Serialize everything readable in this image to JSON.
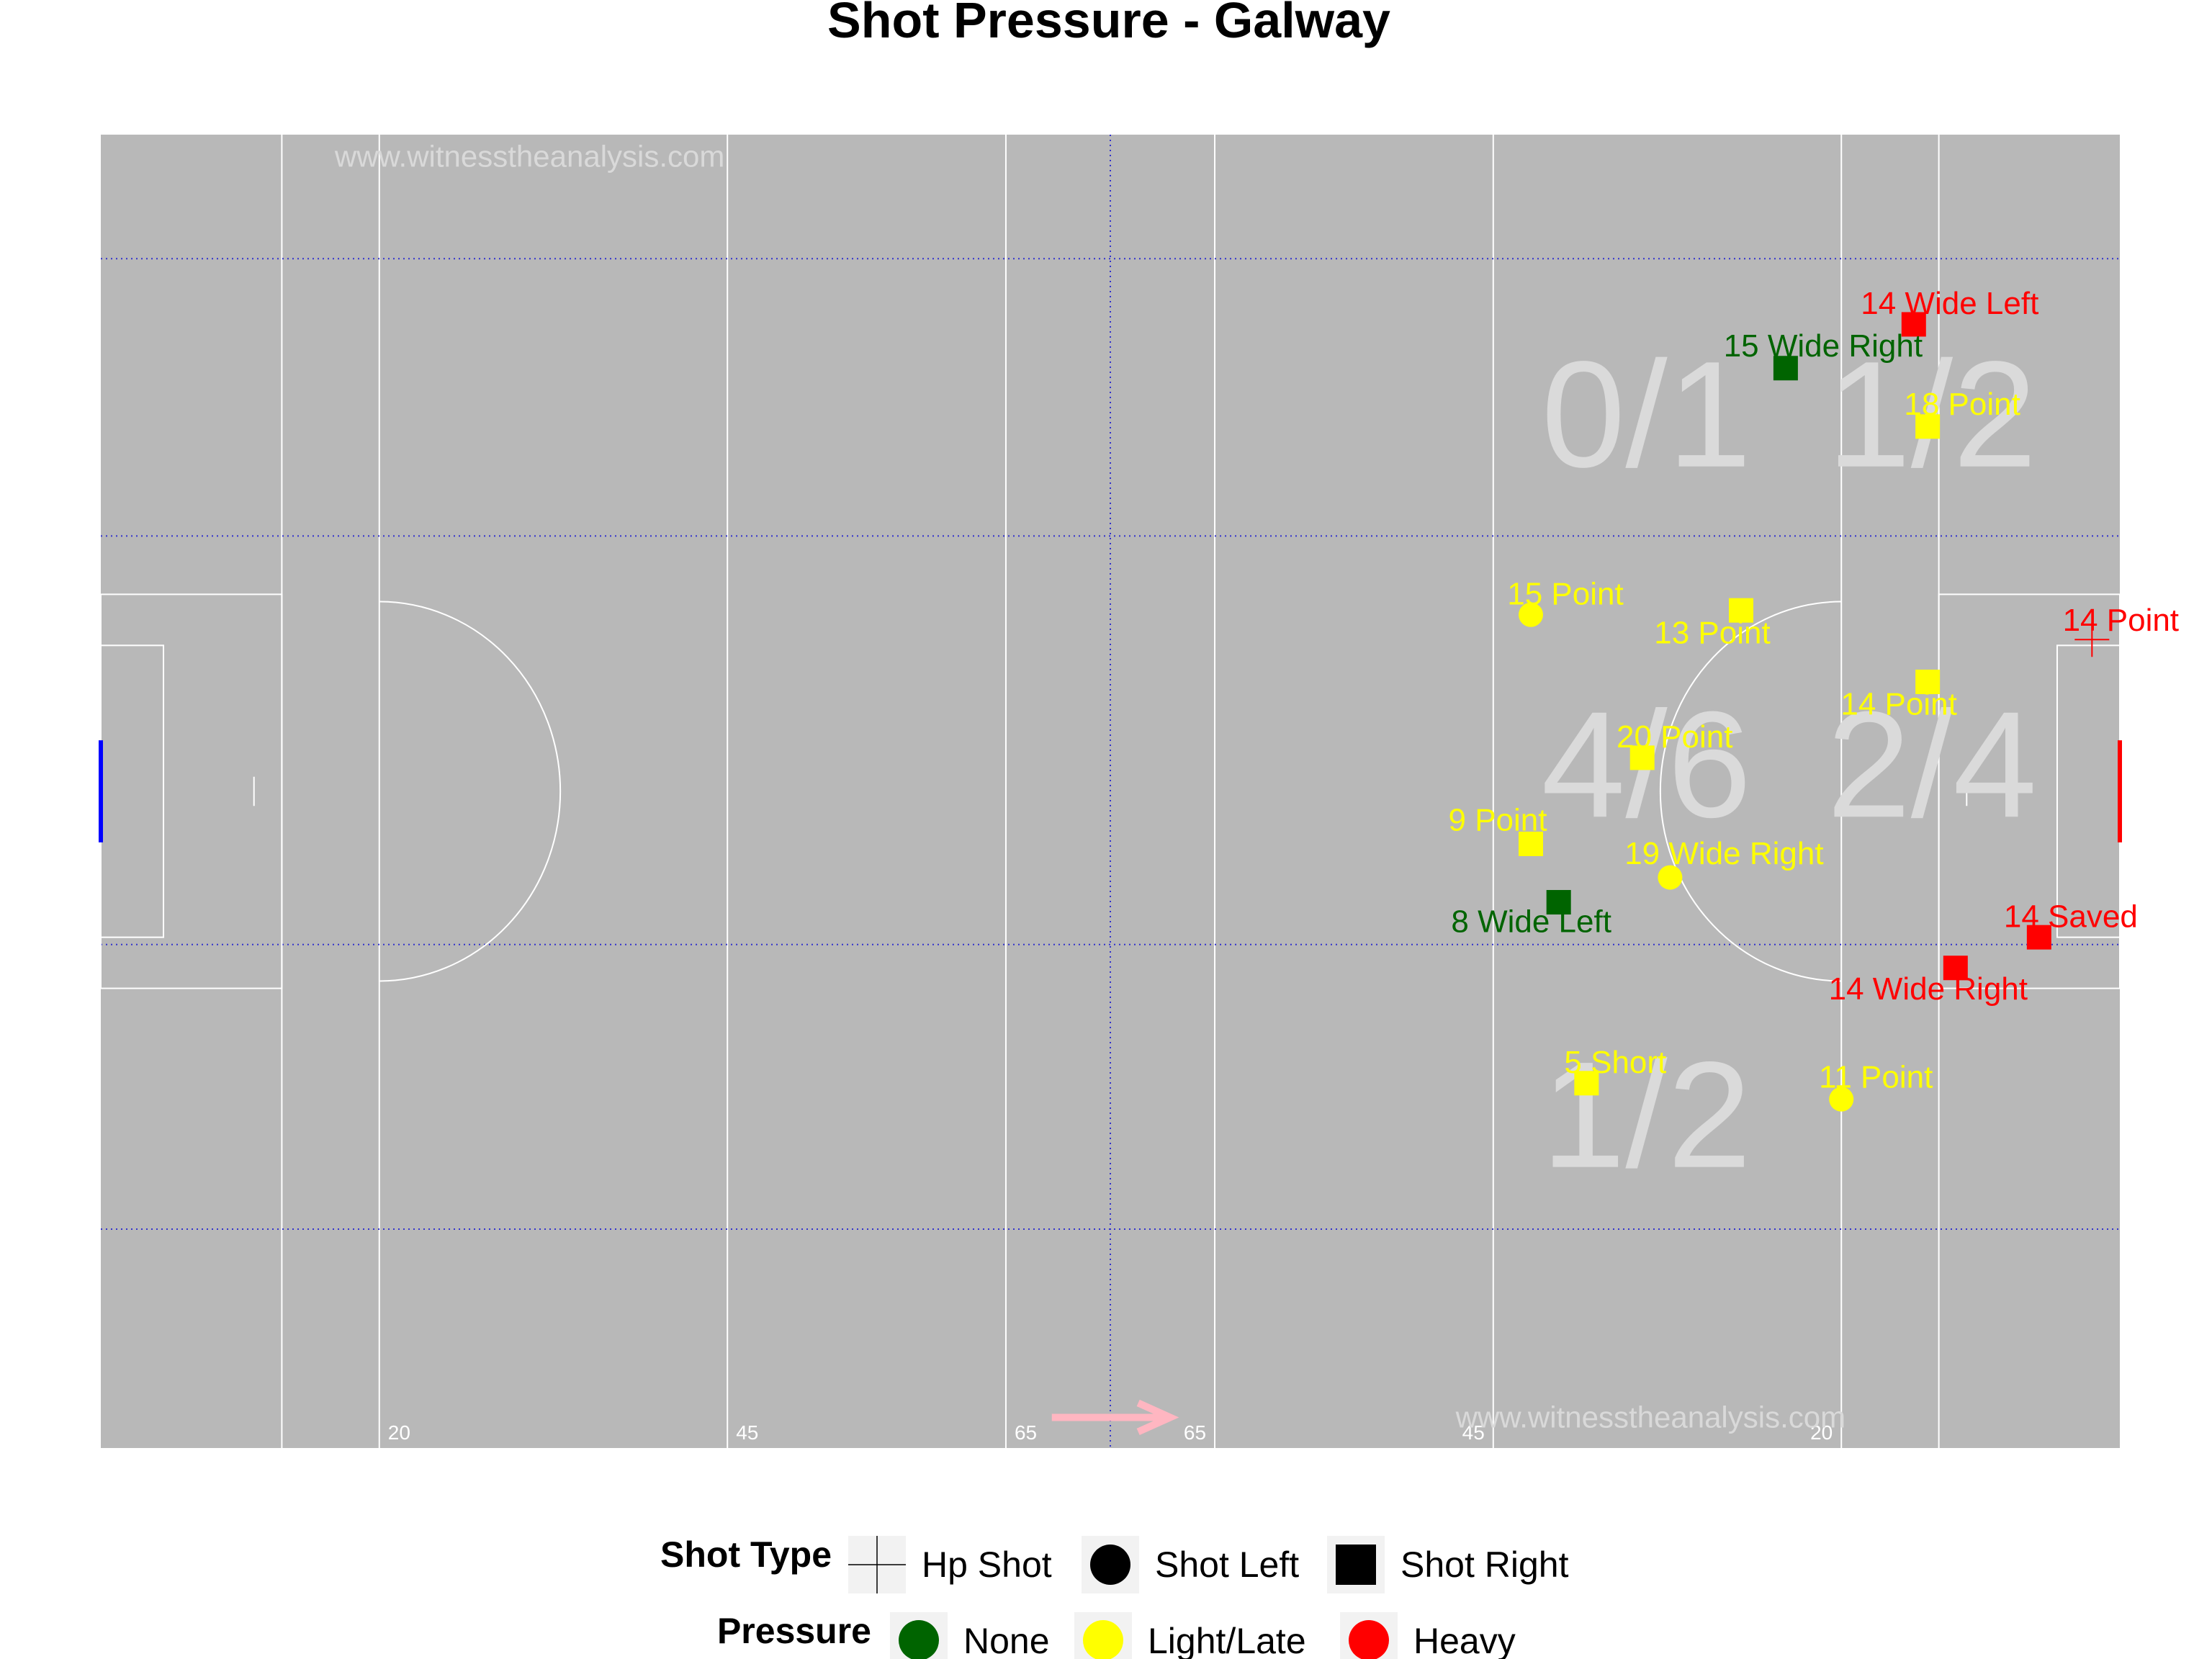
{
  "title": "Shot Pressure - Galway",
  "watermarks": [
    "www.witnesstheanalysis.com",
    "www.witnesstheanalysis.com"
  ],
  "pitch": {
    "yard_markers": [
      "20",
      "45",
      "65",
      "65",
      "45",
      "20"
    ],
    "attack_direction": "right",
    "arrow_color": "#FFB6C1",
    "pitch_color": "#B8B8B8",
    "line_color": "#FFFFFF",
    "zone_line_color": "#3333CC",
    "left_goal_color": "#0000FF",
    "right_goal_color": "#FF0000"
  },
  "zone_stats": [
    {
      "label": "0/1",
      "zone": "top-left"
    },
    {
      "label": "1/2",
      "zone": "top-right"
    },
    {
      "label": "4/6",
      "zone": "centre-left"
    },
    {
      "label": "2/4",
      "zone": "centre-right"
    },
    {
      "label": "1/2",
      "zone": "bottom"
    }
  ],
  "chart_data": {
    "type": "scatter",
    "title": "Shot Pressure - Galway",
    "x_unit": "metres",
    "y_unit": "metres",
    "xlim": [
      0,
      145
    ],
    "ylim": [
      0,
      90
    ],
    "pressure_colors": {
      "None": "#006400",
      "Light/Late": "#FFFF00",
      "Heavy": "#FF0000"
    },
    "points": [
      {
        "label": "14 Wide Left",
        "x": 130.2,
        "y": 77.0,
        "shot_type": "Shot Right",
        "pressure": "Heavy"
      },
      {
        "label": "15 Wide Right",
        "x": 121.0,
        "y": 74.0,
        "shot_type": "Shot Right",
        "pressure": "None"
      },
      {
        "label": "18 Point",
        "x": 131.2,
        "y": 70.0,
        "shot_type": "Shot Right",
        "pressure": "Light/Late"
      },
      {
        "label": "15 Point",
        "x": 102.7,
        "y": 57.1,
        "shot_type": "Shot Left",
        "pressure": "Light/Late"
      },
      {
        "label": "13 Point",
        "x": 117.8,
        "y": 57.4,
        "shot_type": "Shot Right",
        "pressure": "Light/Late"
      },
      {
        "label": "14 Point",
        "x": 143.0,
        "y": 55.4,
        "shot_type": "Hp Shot",
        "pressure": "Heavy"
      },
      {
        "label": "14 Point",
        "x": 131.2,
        "y": 52.5,
        "shot_type": "Shot Right",
        "pressure": "Light/Late"
      },
      {
        "label": "20 Point",
        "x": 110.7,
        "y": 47.3,
        "shot_type": "Shot Right",
        "pressure": "Light/Late"
      },
      {
        "label": "9 Point",
        "x": 102.7,
        "y": 41.4,
        "shot_type": "Shot Right",
        "pressure": "Light/Late"
      },
      {
        "label": "19 Wide Right",
        "x": 112.7,
        "y": 39.1,
        "shot_type": "Shot Left",
        "pressure": "Light/Late"
      },
      {
        "label": "8 Wide Left",
        "x": 104.7,
        "y": 37.4,
        "shot_type": "Shot Right",
        "pressure": "None"
      },
      {
        "label": "14 Saved",
        "x": 139.2,
        "y": 35.0,
        "shot_type": "Shot Right",
        "pressure": "Heavy"
      },
      {
        "label": "14 Wide Right",
        "x": 133.2,
        "y": 32.9,
        "shot_type": "Shot Right",
        "pressure": "Heavy"
      },
      {
        "label": "5 Short",
        "x": 106.7,
        "y": 25.0,
        "shot_type": "Shot Right",
        "pressure": "Light/Late"
      },
      {
        "label": "11 Point",
        "x": 125.0,
        "y": 23.9,
        "shot_type": "Shot Left",
        "pressure": "Light/Late"
      }
    ]
  },
  "legend": {
    "shot_type": {
      "title": "Shot Type",
      "items": [
        {
          "label": "Hp Shot",
          "icon": "cross"
        },
        {
          "label": "Shot Left",
          "icon": "circle"
        },
        {
          "label": "Shot Right",
          "icon": "square"
        }
      ]
    },
    "pressure": {
      "title": "Pressure",
      "items": [
        {
          "label": "None",
          "color": "#006400"
        },
        {
          "label": "Light/Late",
          "color": "#FFFF00"
        },
        {
          "label": "Heavy",
          "color": "#FF0000"
        }
      ]
    }
  }
}
